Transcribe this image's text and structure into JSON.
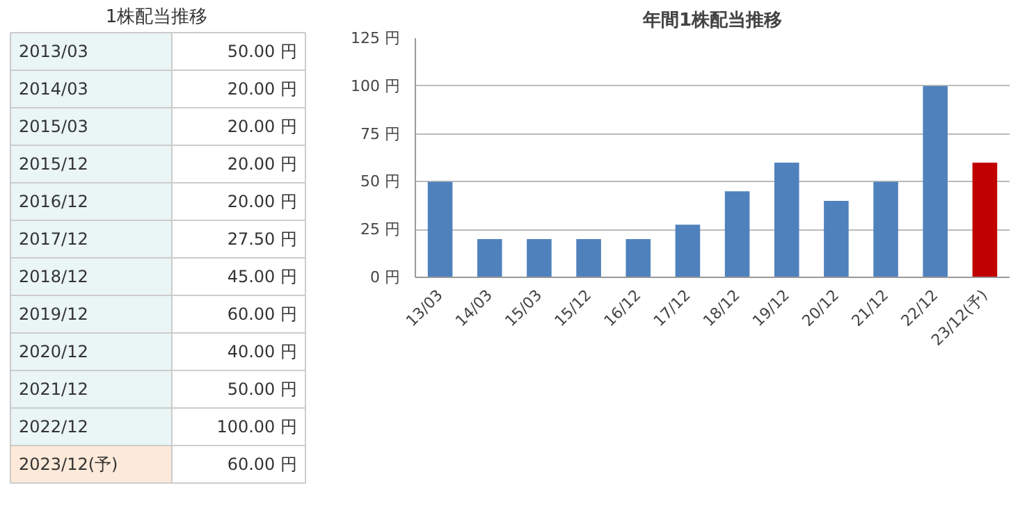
{
  "chart_data": [
    {
      "type": "other",
      "title": "1株配当推移",
      "categories": [
        "2013/03",
        "2014/03",
        "2015/03",
        "2015/12",
        "2016/12",
        "2017/12",
        "2018/12",
        "2019/12",
        "2020/12",
        "2021/12",
        "2022/12",
        "2023/12(予)"
      ],
      "value_labels": [
        "50.00 円",
        "20.00 円",
        "20.00 円",
        "20.00 円",
        "20.00 円",
        "27.50 円",
        "45.00 円",
        "60.00 円",
        "40.00 円",
        "50.00 円",
        "100.00 円",
        "60.00 円"
      ],
      "colors": [
        "#eaf5f5",
        "#eaf5f5",
        "#eaf5f5",
        "#eaf5f5",
        "#eaf5f5",
        "#eaf5f5",
        "#eaf5f5",
        "#eaf5f5",
        "#eaf5f5",
        "#eaf5f5",
        "#eaf5f5",
        "#fde9d9"
      ]
    },
    {
      "type": "bar",
      "title": "年間1株配当推移",
      "categories": [
        "13/03",
        "14/03",
        "15/03",
        "15/12",
        "16/12",
        "17/12",
        "18/12",
        "19/12",
        "20/12",
        "21/12",
        "22/12",
        "23/12(予)"
      ],
      "values": [
        50,
        20,
        20,
        20,
        20,
        27.5,
        45,
        60,
        40,
        50,
        100,
        60
      ],
      "colors": [
        "#4f81bd",
        "#4f81bd",
        "#4f81bd",
        "#4f81bd",
        "#4f81bd",
        "#4f81bd",
        "#4f81bd",
        "#4f81bd",
        "#4f81bd",
        "#4f81bd",
        "#4f81bd",
        "#c00000"
      ],
      "ylim": [
        0,
        125
      ],
      "yticks": [
        {
          "value": 0,
          "label": "0 円"
        },
        {
          "value": 25,
          "label": "25 円"
        },
        {
          "value": 50,
          "label": "50 円"
        },
        {
          "value": 75,
          "label": "75 円"
        },
        {
          "value": 100,
          "label": "100 円"
        },
        {
          "value": 125,
          "label": "125 円"
        }
      ],
      "grid": "y"
    }
  ]
}
